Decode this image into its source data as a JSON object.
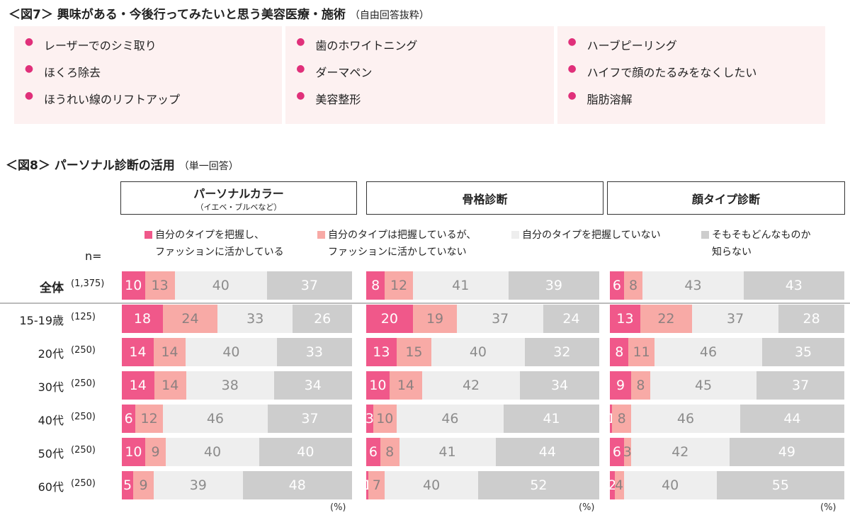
{
  "fig7": {
    "title": "＜図7＞ 興味がある・今後行ってみたいと思う美容医療・施術",
    "subtitle": "（自由回答抜粋）",
    "columns": [
      [
        "レーザーでのシミ取り",
        "ほくろ除去",
        "ほうれい線のリフトアップ"
      ],
      [
        "歯のホワイトニング",
        "ダーマペン",
        "美容整形"
      ],
      [
        "ハーブピーリング",
        "ハイフで顔のたるみをなくしたい",
        "脂肪溶解"
      ]
    ]
  },
  "fig8": {
    "title": "＜図8＞ パーソナル診断の活用",
    "subtitle": "（単一回答）",
    "n_label": "n=",
    "unit": "(%)"
  },
  "chart_data": {
    "type": "bar",
    "stacked": true,
    "orientation": "horizontal",
    "panels": [
      {
        "title": "パーソナルカラー",
        "subtitle": "（イエベ・ブルベなど）"
      },
      {
        "title": "骨格診断",
        "subtitle": ""
      },
      {
        "title": "顔タイプ診断",
        "subtitle": ""
      }
    ],
    "legend": [
      {
        "line1": "自分のタイプを把握し、",
        "line2": "ファッションに活かしている",
        "color": "#f0588a"
      },
      {
        "line1": "自分のタイプは把握しているが、",
        "line2": "ファッションに活かしていない",
        "color": "#f8aaa6"
      },
      {
        "line1": "自分のタイプを把握していない",
        "line2": "",
        "color": "#eeeeee"
      },
      {
        "line1": "そもそもどんなものか",
        "line2": "知らない",
        "color": "#cdcdcd"
      }
    ],
    "rows": [
      {
        "label": "全体",
        "n": "(1,375)",
        "values": [
          [
            10,
            13,
            40,
            37
          ],
          [
            8,
            12,
            41,
            39
          ],
          [
            6,
            8,
            43,
            43
          ]
        ]
      },
      {
        "label": "15-19歳",
        "n": "(125)",
        "values": [
          [
            18,
            24,
            33,
            26
          ],
          [
            20,
            19,
            37,
            24
          ],
          [
            13,
            22,
            37,
            28
          ]
        ]
      },
      {
        "label": "20代",
        "n": "(250)",
        "values": [
          [
            14,
            14,
            40,
            33
          ],
          [
            13,
            15,
            40,
            32
          ],
          [
            8,
            11,
            46,
            35
          ]
        ]
      },
      {
        "label": "30代",
        "n": "(250)",
        "values": [
          [
            14,
            14,
            38,
            34
          ],
          [
            10,
            14,
            42,
            34
          ],
          [
            9,
            8,
            45,
            37
          ]
        ]
      },
      {
        "label": "40代",
        "n": "(250)",
        "values": [
          [
            6,
            12,
            46,
            37
          ],
          [
            3,
            10,
            46,
            41
          ],
          [
            1,
            8,
            46,
            44
          ]
        ]
      },
      {
        "label": "50代",
        "n": "(250)",
        "values": [
          [
            10,
            9,
            40,
            40
          ],
          [
            6,
            8,
            41,
            44
          ],
          [
            6,
            3,
            42,
            49
          ]
        ]
      },
      {
        "label": "60代",
        "n": "(250)",
        "values": [
          [
            5,
            9,
            39,
            48
          ],
          [
            1,
            7,
            40,
            52
          ],
          [
            2,
            4,
            40,
            55
          ]
        ]
      }
    ]
  }
}
